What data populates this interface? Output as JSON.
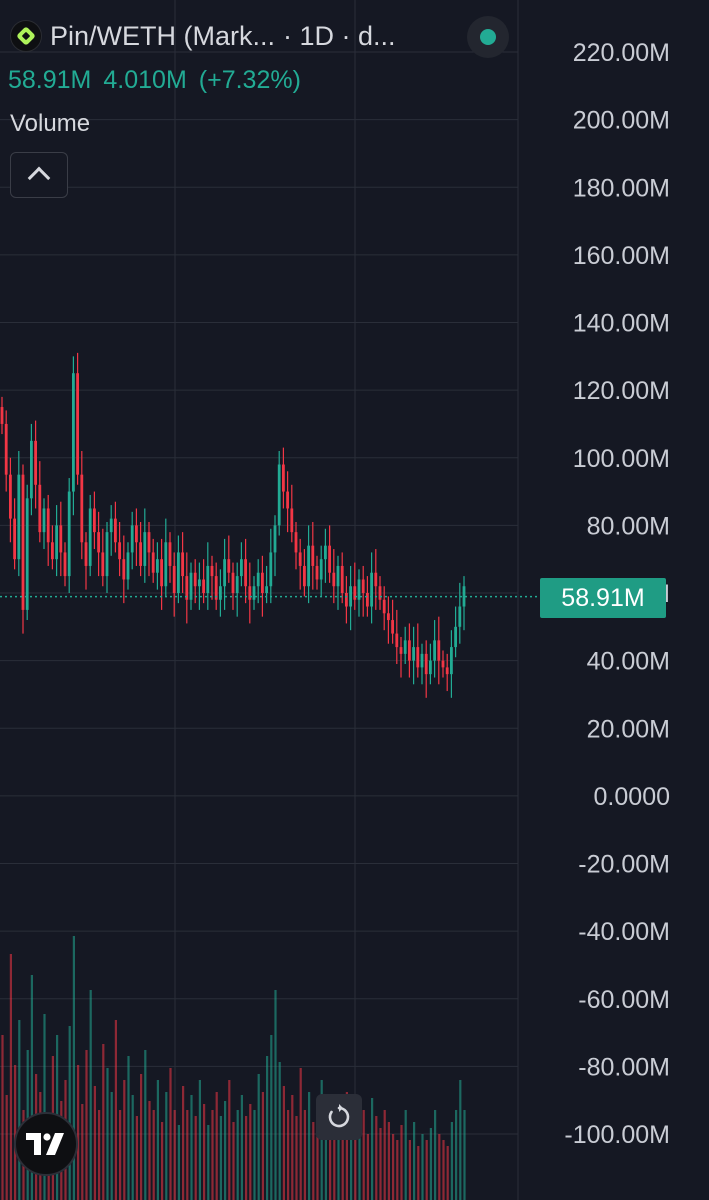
{
  "header": {
    "title": "Pin/WETH (Mark...",
    "interval": "· 1D · d...",
    "logo_icon": "pin-token-icon",
    "status_color": "#22ab94"
  },
  "stats": {
    "value": "58.91M",
    "change": "4.010M",
    "change_pct": "(+7.32%)"
  },
  "indicator": {
    "label": "Volume",
    "collapse_icon": "chevron-up-icon"
  },
  "last_price_label": "58.91M",
  "colors": {
    "up": "#22ab94",
    "down": "#f23645",
    "background": "#151823",
    "grid": "#2a2e39",
    "axis_text": "#c9ccd4"
  },
  "icons": {
    "brand": "tradingview-logo-icon",
    "reset": "reset-chart-icon"
  },
  "chart_data": {
    "type": "candlestick",
    "ylim": [
      -100000000,
      220000000
    ],
    "y_tick_labels": [
      "220.00M",
      "200.00M",
      "180.00M",
      "160.00M",
      "140.00M",
      "120.00M",
      "100.00M",
      "80.00M",
      "60.00M",
      "40.00M",
      "20.00M",
      "0.0000",
      "-20.00M",
      "-40.00M",
      "-60.00M",
      "-80.00M",
      "-100.00M"
    ],
    "y_ticks": [
      220000000,
      200000000,
      180000000,
      160000000,
      140000000,
      120000000,
      100000000,
      80000000,
      60000000,
      40000000,
      20000000,
      0,
      -20000000,
      -40000000,
      -60000000,
      -80000000,
      -100000000
    ],
    "last_value": 58910000,
    "grid": true,
    "close": [
      110,
      95,
      82,
      70,
      95,
      55,
      88,
      105,
      92,
      78,
      85,
      75,
      70,
      80,
      72,
      65,
      90,
      125,
      95,
      75,
      68,
      85,
      78,
      72,
      65,
      78,
      82,
      75,
      70,
      64,
      72,
      80,
      75,
      68,
      78,
      72,
      66,
      70,
      62,
      75,
      68,
      60,
      72,
      65,
      58,
      66,
      62,
      64,
      60,
      68,
      65,
      58,
      62,
      70,
      66,
      60,
      65,
      70,
      62,
      58,
      62,
      66,
      60,
      62,
      72,
      80,
      98,
      90,
      85,
      78,
      72,
      68,
      62,
      74,
      68,
      64,
      70,
      74,
      66,
      62,
      68,
      60,
      56,
      62,
      58,
      64,
      60,
      56,
      66,
      62,
      58,
      54,
      52,
      48,
      44,
      42,
      46,
      40,
      44,
      38,
      42,
      36,
      40,
      46,
      40,
      38,
      36,
      44,
      50,
      56,
      62
    ],
    "volume_levels": [
      0.55,
      0.35,
      0.82,
      0.45,
      0.6,
      0.3,
      0.5,
      0.75,
      0.42,
      0.36,
      0.62,
      0.28,
      0.48,
      0.55,
      0.33,
      0.4,
      0.58,
      0.88,
      0.45,
      0.32,
      0.5,
      0.7,
      0.38,
      0.3,
      0.52,
      0.44,
      0.36,
      0.6,
      0.3,
      0.4,
      0.48,
      0.35,
      0.28,
      0.42,
      0.5,
      0.33,
      0.3,
      0.4,
      0.26,
      0.36,
      0.44,
      0.3,
      0.25,
      0.38,
      0.3,
      0.35,
      0.28,
      0.4,
      0.32,
      0.25,
      0.3,
      0.36,
      0.28,
      0.33,
      0.4,
      0.26,
      0.3,
      0.35,
      0.28,
      0.32,
      0.3,
      0.42,
      0.36,
      0.48,
      0.55,
      0.7,
      0.46,
      0.38,
      0.3,
      0.35,
      0.28,
      0.44,
      0.3,
      0.36,
      0.26,
      0.32,
      0.4,
      0.3,
      0.25,
      0.34,
      0.28,
      0.3,
      0.36,
      0.28,
      0.32,
      0.26,
      0.3,
      0.22,
      0.34,
      0.28,
      0.24,
      0.3,
      0.26,
      0.22,
      0.2,
      0.25,
      0.3,
      0.2,
      0.26,
      0.18,
      0.22,
      0.2,
      0.24,
      0.3,
      0.22,
      0.2,
      0.18,
      0.26,
      0.3,
      0.4,
      0.3
    ]
  }
}
